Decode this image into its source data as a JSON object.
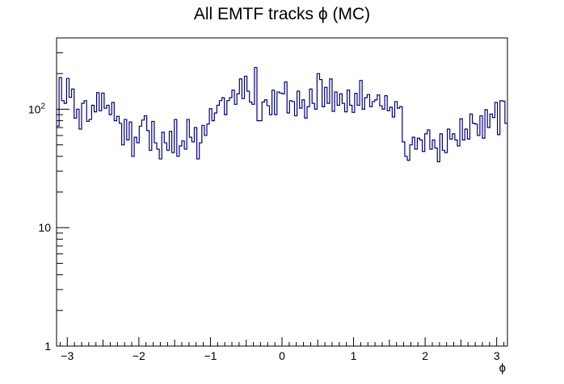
{
  "chart_data": {
    "type": "histogram",
    "title": "All EMTF tracks ϕ (MC)",
    "xlabel": "ϕ",
    "ylabel": "",
    "xlim": [
      -3.15,
      3.15
    ],
    "ylim": [
      1,
      400
    ],
    "yscale": "log",
    "grid": false,
    "line_color": "#000080",
    "x_tick_labels": [
      "−3",
      "−2",
      "−1",
      "0",
      "1",
      "2",
      "3"
    ],
    "x_tick_values": [
      -3,
      -2,
      -1,
      0,
      1,
      2,
      3
    ],
    "y_tick_labels": [
      {
        "value": 1,
        "base": "1",
        "exp": ""
      },
      {
        "value": 10,
        "base": "10",
        "exp": ""
      },
      {
        "value": 100,
        "base": "10",
        "exp": "2"
      }
    ],
    "bins": 180,
    "values": [
      72,
      185,
      118,
      112,
      182,
      126,
      148,
      84,
      100,
      68,
      112,
      118,
      79,
      82,
      108,
      95,
      138,
      97,
      137,
      102,
      108,
      90,
      114,
      80,
      87,
      76,
      50,
      82,
      55,
      78,
      40,
      58,
      52,
      72,
      81,
      88,
      66,
      45,
      79,
      52,
      46,
      38,
      64,
      52,
      45,
      65,
      43,
      82,
      40,
      49,
      54,
      46,
      82,
      58,
      53,
      70,
      38,
      52,
      73,
      60,
      75,
      101,
      80,
      93,
      108,
      118,
      125,
      90,
      118,
      125,
      145,
      110,
      135,
      180,
      123,
      190,
      142,
      115,
      110,
      225,
      80,
      80,
      115,
      120,
      107,
      90,
      145,
      90,
      140,
      137,
      135,
      170,
      93,
      118,
      116,
      88,
      142,
      102,
      120,
      84,
      105,
      148,
      112,
      100,
      200,
      178,
      105,
      153,
      112,
      180,
      96,
      140,
      108,
      135,
      112,
      95,
      145,
      108,
      94,
      136,
      108,
      175,
      100,
      125,
      133,
      105,
      116,
      120,
      132,
      107,
      100,
      130,
      97,
      104,
      86,
      116,
      102,
      105,
      53,
      40,
      37,
      50,
      58,
      46,
      57,
      55,
      44,
      62,
      67,
      46,
      55,
      47,
      36,
      62,
      45,
      43,
      68,
      56,
      62,
      55,
      49,
      83,
      55,
      68,
      56,
      91,
      76,
      75,
      60,
      88,
      57,
      99,
      70,
      91,
      85,
      114,
      61,
      118,
      117,
      76
    ]
  }
}
